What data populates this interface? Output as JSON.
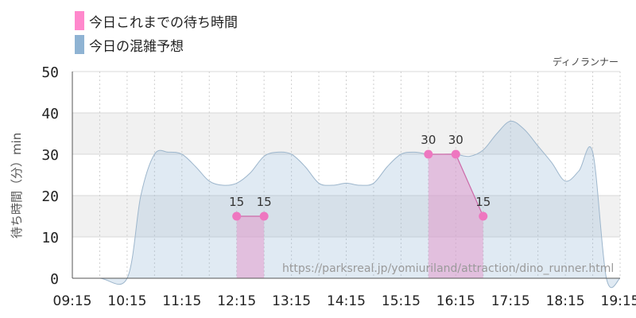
{
  "legend": {
    "items": [
      {
        "label": "今日これまでの待ち時間",
        "color": "#ff88cc"
      },
      {
        "label": "今日の混雑予想",
        "color": "#8fb3d3"
      }
    ]
  },
  "credit": "ディノランナー",
  "watermark": "https://parksreal.jp/yomiuriland/attraction/dino_runner.html",
  "chart_data": {
    "type": "area",
    "xlabel": "",
    "ylabel": "待ち時間（分）min",
    "ylim": [
      0,
      50
    ],
    "yticks": [
      0,
      10,
      20,
      30,
      40,
      50
    ],
    "xlim": [
      "09:15",
      "19:15"
    ],
    "xticks": [
      "09:15",
      "10:15",
      "11:15",
      "12:15",
      "13:15",
      "14:15",
      "15:15",
      "16:15",
      "17:15",
      "18:15",
      "19:15"
    ],
    "grid": true,
    "legend_position": "top-left",
    "series": [
      {
        "name": "今日の混雑予想",
        "color": "#8fb3d3",
        "points": [
          [
            "09:15",
            0
          ],
          [
            "09:45",
            0
          ],
          [
            "10:15",
            0
          ],
          [
            "10:30",
            20
          ],
          [
            "10:45",
            30
          ],
          [
            "11:00",
            30.5
          ],
          [
            "11:15",
            30
          ],
          [
            "11:30",
            27
          ],
          [
            "11:45",
            23.5
          ],
          [
            "12:00",
            22.5
          ],
          [
            "12:15",
            23
          ],
          [
            "12:30",
            25.5
          ],
          [
            "12:45",
            29.5
          ],
          [
            "13:00",
            30.5
          ],
          [
            "13:15",
            30
          ],
          [
            "13:30",
            27
          ],
          [
            "13:45",
            23
          ],
          [
            "14:00",
            22.5
          ],
          [
            "14:15",
            23
          ],
          [
            "14:30",
            22.5
          ],
          [
            "14:45",
            23
          ],
          [
            "15:00",
            27
          ],
          [
            "15:15",
            30
          ],
          [
            "15:30",
            30.5
          ],
          [
            "15:45",
            30
          ],
          [
            "16:00",
            30
          ],
          [
            "16:15",
            30
          ],
          [
            "16:30",
            29.5
          ],
          [
            "16:45",
            31
          ],
          [
            "17:00",
            35
          ],
          [
            "17:15",
            38
          ],
          [
            "17:30",
            36
          ],
          [
            "17:45",
            32
          ],
          [
            "18:00",
            28
          ],
          [
            "18:15",
            23.5
          ],
          [
            "18:30",
            26
          ],
          [
            "18:45",
            30.5
          ],
          [
            "19:00",
            0
          ],
          [
            "19:15",
            0
          ]
        ]
      },
      {
        "name": "今日これまでの待ち時間",
        "color": "#ff88cc",
        "segments": [
          [
            [
              "12:15",
              15
            ],
            [
              "12:45",
              15
            ]
          ],
          [
            [
              "15:45",
              30
            ],
            [
              "16:15",
              30
            ],
            [
              "16:45",
              15
            ]
          ]
        ],
        "labels": [
          {
            "x": "12:15",
            "y": 15,
            "text": "15"
          },
          {
            "x": "12:45",
            "y": 15,
            "text": "15"
          },
          {
            "x": "15:45",
            "y": 30,
            "text": "30"
          },
          {
            "x": "16:15",
            "y": 30,
            "text": "30"
          },
          {
            "x": "16:45",
            "y": 15,
            "text": "15"
          }
        ]
      }
    ]
  }
}
